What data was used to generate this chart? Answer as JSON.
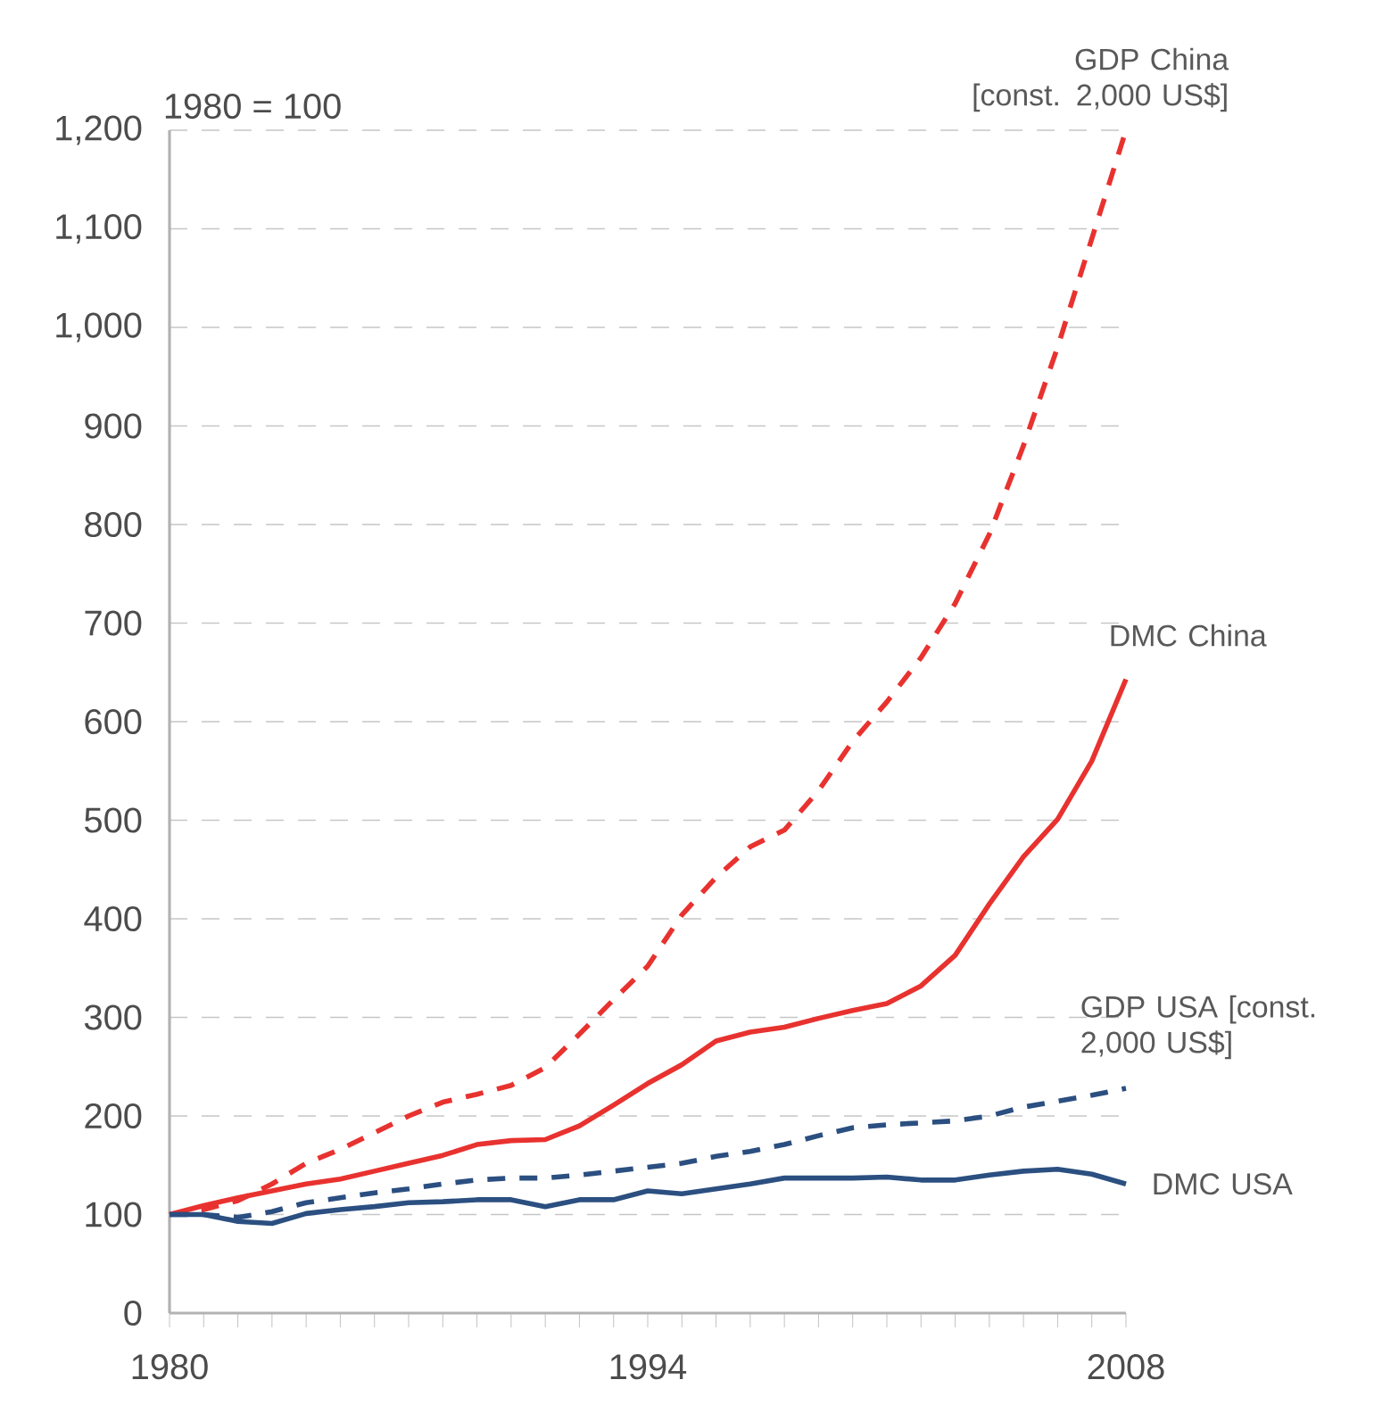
{
  "chart_data": {
    "type": "line",
    "ylabel": "1980 = 100",
    "x": [
      1980,
      1981,
      1982,
      1983,
      1984,
      1985,
      1986,
      1987,
      1988,
      1989,
      1990,
      1991,
      1992,
      1993,
      1994,
      1995,
      1996,
      1997,
      1998,
      1999,
      2000,
      2001,
      2002,
      2003,
      2004,
      2005,
      2006,
      2007,
      2008
    ],
    "series": [
      {
        "name": "GDP China [const. 2,000 US$]",
        "color": "#e8322f",
        "line_style": "dashed",
        "values": [
          100,
          105,
          114,
          131,
          152,
          166,
          183,
          200,
          214,
          222,
          231,
          249,
          283,
          318,
          352,
          404,
          442,
          473,
          490,
          530,
          580,
          620,
          665,
          720,
          790,
          880,
          980,
          1090,
          1200
        ]
      },
      {
        "name": "DMC China",
        "color": "#e8322f",
        "line_style": "solid",
        "values": [
          100,
          109,
          117,
          124,
          131,
          136,
          144,
          152,
          160,
          171,
          175,
          176,
          190,
          211,
          233,
          252,
          276,
          285,
          290,
          299,
          307,
          314,
          332,
          363,
          415,
          463,
          501,
          560,
          643
        ]
      },
      {
        "name": "GDP USA [const. 2,000 US$]",
        "color": "#2b4f80",
        "line_style": "dashed",
        "values": [
          100,
          100,
          97,
          103,
          112,
          117,
          122,
          126,
          131,
          135,
          137,
          137,
          140,
          144,
          148,
          152,
          159,
          164,
          171,
          180,
          188,
          191,
          193,
          195,
          200,
          209,
          215,
          221,
          228
        ]
      },
      {
        "name": "DMC USA",
        "color": "#2b4f80",
        "line_style": "solid",
        "values": [
          100,
          100,
          93,
          91,
          101,
          105,
          108,
          112,
          113,
          115,
          115,
          108,
          115,
          115,
          124,
          121,
          126,
          131,
          137,
          137,
          137,
          138,
          135,
          135,
          140,
          144,
          146,
          141,
          131
        ]
      }
    ],
    "xlim": [
      1980,
      2008
    ],
    "xticks": [
      1980,
      {
        "value": 1981,
        "label": null
      },
      {
        "value": 1982,
        "label": null
      },
      {
        "value": 1983,
        "label": null
      },
      {
        "value": 1984,
        "label": null
      },
      {
        "value": 1985,
        "label": null
      },
      {
        "value": 1986,
        "label": null
      },
      {
        "value": 1987,
        "label": null
      },
      {
        "value": 1988,
        "label": null
      },
      {
        "value": 1989,
        "label": null
      },
      {
        "value": 1990,
        "label": null
      },
      {
        "value": 1991,
        "label": null
      },
      {
        "value": 1992,
        "label": null
      },
      {
        "value": 1993,
        "label": null
      },
      1994,
      {
        "value": 1995,
        "label": null
      },
      {
        "value": 1996,
        "label": null
      },
      {
        "value": 1997,
        "label": null
      },
      {
        "value": 1998,
        "label": null
      },
      {
        "value": 1999,
        "label": null
      },
      {
        "value": 2000,
        "label": null
      },
      {
        "value": 2001,
        "label": null
      },
      {
        "value": 2002,
        "label": null
      },
      {
        "value": 2003,
        "label": null
      },
      {
        "value": 2004,
        "label": null
      },
      {
        "value": 2005,
        "label": null
      },
      {
        "value": 2006,
        "label": null
      },
      {
        "value": 2007,
        "label": null
      },
      2008
    ],
    "ylim": [
      0,
      1200
    ],
    "yticks": [
      0,
      100,
      200,
      300,
      400,
      500,
      600,
      700,
      800,
      900,
      {
        "value": 1000,
        "label": "1,000"
      },
      {
        "value": 1100,
        "label": "1,100"
      },
      {
        "value": 1200,
        "label": "1,200"
      }
    ],
    "grid": "y",
    "marker": "none"
  }
}
